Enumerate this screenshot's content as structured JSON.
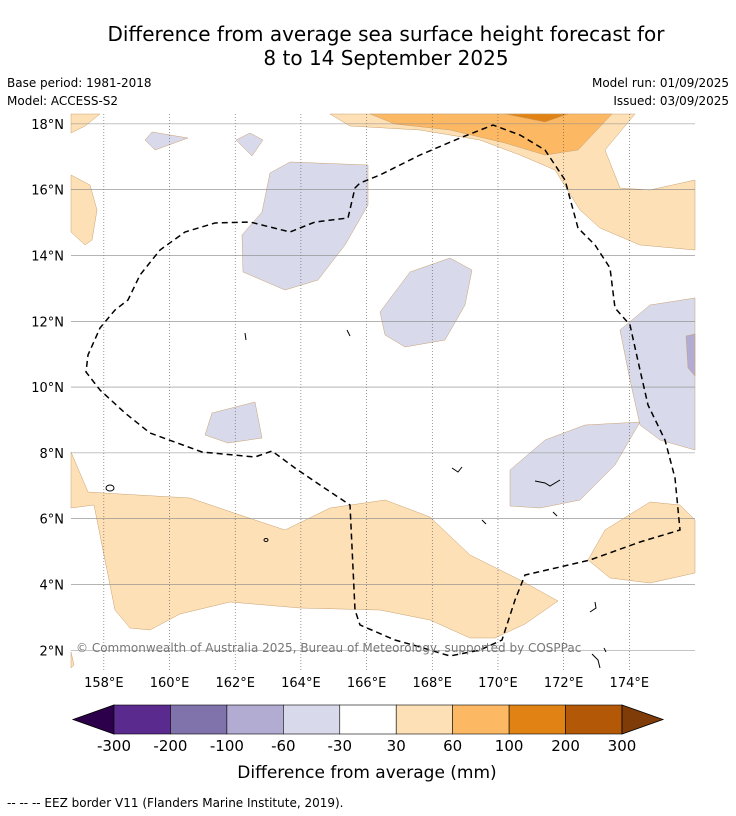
{
  "title": {
    "line1": "Difference from average sea surface height forecast for",
    "line2": "8 to 14 September 2025"
  },
  "meta": {
    "base_period": "Base period: 1981-2018",
    "model": "Model: ACCESS-S2",
    "model_run": "Model run: 01/09/2025",
    "issued": "Issued: 03/09/2025"
  },
  "map": {
    "lon_range": [
      157,
      176
    ],
    "lat_range": [
      1.4,
      18.3
    ],
    "lon_ticks": [
      158,
      160,
      162,
      164,
      166,
      168,
      170,
      172,
      174
    ],
    "lon_labels": [
      "158°E",
      "160°E",
      "162°E",
      "164°E",
      "166°E",
      "168°E",
      "170°E",
      "172°E",
      "174°E"
    ],
    "lat_ticks": [
      2,
      4,
      6,
      8,
      10,
      12,
      14,
      16,
      18
    ],
    "lat_labels": [
      "2°N",
      "4°N",
      "6°N",
      "8°N",
      "10°N",
      "12°N",
      "14°N",
      "16°N",
      "18°N"
    ],
    "copyright": "© Commonwealth of Australia 2025, Bureau of Meteorology, supported by COSPPac"
  },
  "colorbar": {
    "colors": [
      "#2d004b",
      "#5b2a8e",
      "#8073ac",
      "#b2abd2",
      "#d8daeb",
      "#ffffff",
      "#fee0b6",
      "#fdb863",
      "#e08214",
      "#b35806",
      "#7f3b08"
    ],
    "tick_labels": [
      "-300",
      "-200",
      "-100",
      "-60",
      "-30",
      "30",
      "60",
      "100",
      "200",
      "300"
    ],
    "label": "Difference from average (mm)"
  },
  "footer": {
    "legend_text": "--  --  -- EEZ border V11 (Flanders Marine Institute, 2019)."
  }
}
